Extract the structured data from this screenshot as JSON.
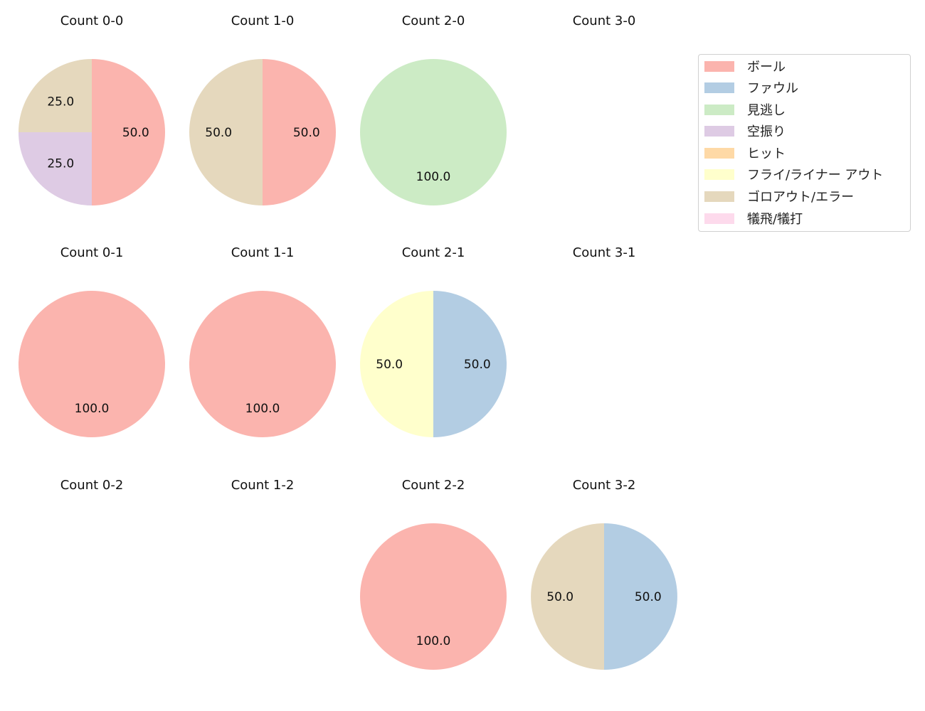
{
  "chart_data": {
    "type": "pie",
    "direction": "clockwise",
    "start_angle_deg": 90,
    "legend": {
      "placement": "top-right",
      "entries": [
        {
          "label": "ボール",
          "color": "#fbb4ae"
        },
        {
          "label": "ファウル",
          "color": "#b3cde3"
        },
        {
          "label": "見逃し",
          "color": "#ccebc5"
        },
        {
          "label": "空振り",
          "color": "#decbe4"
        },
        {
          "label": "ヒット",
          "color": "#fed9a6"
        },
        {
          "label": "フライ/ライナー アウト",
          "color": "#ffffcc"
        },
        {
          "label": "ゴロアウト/エラー",
          "color": "#e5d8bd"
        },
        {
          "label": "犠飛/犠打",
          "color": "#fddaec"
        }
      ]
    },
    "panels": [
      {
        "title": "Count 0-0",
        "row": 0,
        "col": 0,
        "slices": [
          {
            "category": "ボール",
            "value": 50.0
          },
          {
            "category": "空振り",
            "value": 25.0
          },
          {
            "category": "ゴロアウト/エラー",
            "value": 25.0
          }
        ]
      },
      {
        "title": "Count 1-0",
        "row": 0,
        "col": 1,
        "slices": [
          {
            "category": "ボール",
            "value": 50.0
          },
          {
            "category": "ゴロアウト/エラー",
            "value": 50.0
          }
        ]
      },
      {
        "title": "Count 2-0",
        "row": 0,
        "col": 2,
        "slices": [
          {
            "category": "見逃し",
            "value": 100.0
          }
        ]
      },
      {
        "title": "Count 3-0",
        "row": 0,
        "col": 3,
        "slices": []
      },
      {
        "title": "Count 0-1",
        "row": 1,
        "col": 0,
        "slices": [
          {
            "category": "ボール",
            "value": 100.0
          }
        ]
      },
      {
        "title": "Count 1-1",
        "row": 1,
        "col": 1,
        "slices": [
          {
            "category": "ボール",
            "value": 100.0
          }
        ]
      },
      {
        "title": "Count 2-1",
        "row": 1,
        "col": 2,
        "slices": [
          {
            "category": "ファウル",
            "value": 50.0
          },
          {
            "category": "フライ/ライナー アウト",
            "value": 50.0
          }
        ]
      },
      {
        "title": "Count 3-1",
        "row": 1,
        "col": 3,
        "slices": []
      },
      {
        "title": "Count 0-2",
        "row": 2,
        "col": 0,
        "slices": []
      },
      {
        "title": "Count 1-2",
        "row": 2,
        "col": 1,
        "slices": []
      },
      {
        "title": "Count 2-2",
        "row": 2,
        "col": 2,
        "slices": [
          {
            "category": "ボール",
            "value": 100.0
          }
        ]
      },
      {
        "title": "Count 3-2",
        "row": 2,
        "col": 3,
        "slices": [
          {
            "category": "ファウル",
            "value": 50.0
          },
          {
            "category": "ゴロアウト/エラー",
            "value": 50.0
          }
        ]
      }
    ]
  }
}
